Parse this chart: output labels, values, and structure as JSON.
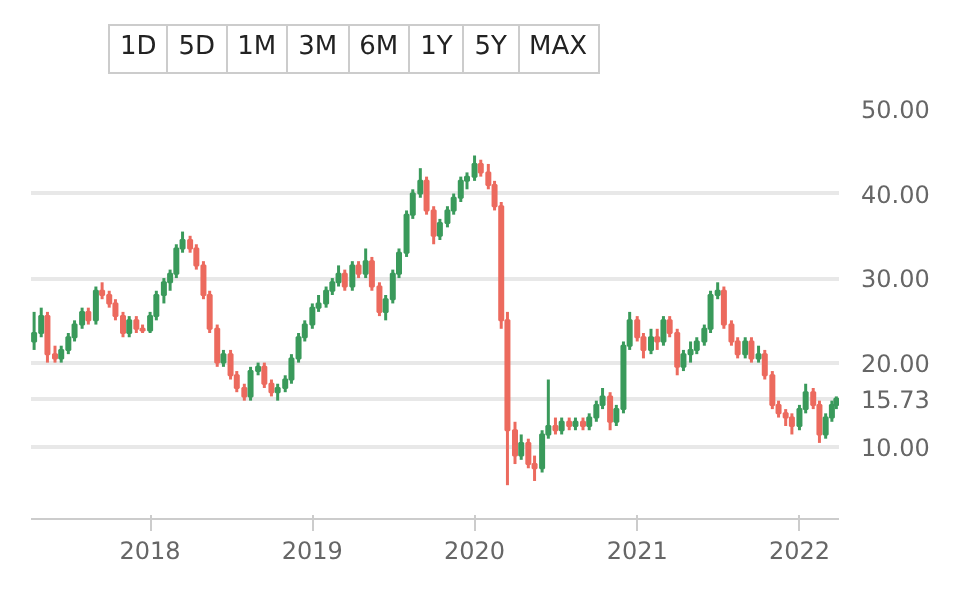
{
  "chart_data": {
    "type": "candlestick",
    "annotations": [
      "1D",
      "5D",
      "1M",
      "3M",
      "6M",
      "1Y",
      "5Y",
      "MAX"
    ],
    "x": [
      "2017-04-15",
      "2017-05-01",
      "2017-05-15",
      "2017-06-01",
      "2017-06-15",
      "2017-07-01",
      "2017-07-15",
      "2017-08-01",
      "2017-08-15",
      "2017-09-01",
      "2017-09-15",
      "2017-10-01",
      "2017-10-15",
      "2017-11-01",
      "2017-11-15",
      "2017-12-01",
      "2017-12-15",
      "2018-01-01",
      "2018-01-15",
      "2018-02-01",
      "2018-02-15",
      "2018-03-01",
      "2018-03-15",
      "2018-04-01",
      "2018-04-15",
      "2018-05-01",
      "2018-05-15",
      "2018-06-01",
      "2018-06-15",
      "2018-07-01",
      "2018-07-15",
      "2018-08-01",
      "2018-08-15",
      "2018-09-01",
      "2018-09-15",
      "2018-10-01",
      "2018-10-15",
      "2018-11-01",
      "2018-11-15",
      "2018-12-01",
      "2018-12-15",
      "2019-01-01",
      "2019-01-15",
      "2019-02-01",
      "2019-02-15",
      "2019-03-01",
      "2019-03-15",
      "2019-04-01",
      "2019-04-15",
      "2019-05-01",
      "2019-05-15",
      "2019-06-01",
      "2019-06-15",
      "2019-07-01",
      "2019-07-15",
      "2019-08-01",
      "2019-08-15",
      "2019-09-01",
      "2019-09-15",
      "2019-10-01",
      "2019-10-15",
      "2019-11-01",
      "2019-11-15",
      "2019-12-01",
      "2019-12-15",
      "2020-01-01",
      "2020-01-15",
      "2020-02-01",
      "2020-02-15",
      "2020-03-01",
      "2020-03-15",
      "2020-04-01",
      "2020-04-15",
      "2020-05-01",
      "2020-05-15",
      "2020-06-01",
      "2020-06-15",
      "2020-07-01",
      "2020-07-15",
      "2020-08-01",
      "2020-08-15",
      "2020-09-01",
      "2020-09-15",
      "2020-10-01",
      "2020-10-15",
      "2020-11-01",
      "2020-11-15",
      "2020-12-01",
      "2020-12-15",
      "2021-01-01",
      "2021-01-15",
      "2021-02-01",
      "2021-02-15",
      "2021-03-01",
      "2021-03-15",
      "2021-04-01",
      "2021-04-15",
      "2021-05-01",
      "2021-05-15",
      "2021-06-01",
      "2021-06-15",
      "2021-07-01",
      "2021-07-15",
      "2021-08-01",
      "2021-08-15",
      "2021-09-01",
      "2021-09-15",
      "2021-10-01",
      "2021-10-15",
      "2021-11-01",
      "2021-11-15",
      "2021-12-01",
      "2021-12-15",
      "2022-01-01",
      "2022-01-15",
      "2022-02-01",
      "2022-02-15",
      "2022-03-01",
      "2022-03-15",
      "2022-03-25"
    ],
    "ohlc": [
      [
        22.5,
        26.0,
        21.5,
        23.5
      ],
      [
        23.5,
        26.5,
        23.0,
        25.5
      ],
      [
        25.5,
        26.0,
        20.0,
        21.0
      ],
      [
        21.0,
        22.0,
        20.0,
        20.5
      ],
      [
        20.5,
        22.0,
        20.0,
        21.5
      ],
      [
        21.5,
        23.5,
        21.0,
        23.0
      ],
      [
        23.0,
        25.0,
        22.5,
        24.5
      ],
      [
        24.5,
        26.5,
        24.0,
        26.0
      ],
      [
        26.0,
        26.5,
        24.5,
        25.0
      ],
      [
        25.0,
        29.0,
        24.5,
        28.5
      ],
      [
        28.5,
        29.5,
        27.5,
        28.0
      ],
      [
        28.0,
        28.5,
        26.5,
        27.0
      ],
      [
        27.0,
        27.5,
        25.0,
        25.5
      ],
      [
        25.5,
        26.0,
        23.0,
        23.5
      ],
      [
        23.5,
        25.5,
        23.0,
        25.0
      ],
      [
        25.0,
        25.5,
        23.5,
        24.0
      ],
      [
        24.0,
        24.5,
        23.5,
        23.8
      ],
      [
        23.8,
        26.0,
        23.5,
        25.5
      ],
      [
        25.5,
        28.5,
        25.0,
        28.0
      ],
      [
        28.0,
        30.0,
        27.0,
        29.5
      ],
      [
        29.5,
        31.0,
        28.5,
        30.5
      ],
      [
        30.5,
        34.0,
        30.0,
        33.5
      ],
      [
        33.5,
        35.5,
        33.0,
        34.5
      ],
      [
        34.5,
        35.0,
        33.0,
        33.5
      ],
      [
        33.5,
        34.0,
        31.0,
        31.5
      ],
      [
        31.5,
        32.0,
        27.5,
        28.0
      ],
      [
        28.0,
        28.5,
        23.5,
        24.0
      ],
      [
        24.0,
        24.5,
        19.5,
        20.0
      ],
      [
        20.0,
        21.5,
        19.5,
        21.0
      ],
      [
        21.0,
        21.5,
        18.0,
        18.5
      ],
      [
        18.5,
        19.0,
        16.5,
        17.0
      ],
      [
        17.0,
        17.5,
        15.5,
        16.0
      ],
      [
        16.0,
        19.5,
        15.5,
        19.0
      ],
      [
        19.0,
        20.0,
        18.5,
        19.5
      ],
      [
        19.5,
        20.0,
        17.0,
        17.5
      ],
      [
        17.5,
        18.0,
        16.0,
        16.5
      ],
      [
        16.5,
        17.5,
        15.5,
        17.0
      ],
      [
        17.0,
        18.5,
        16.5,
        18.0
      ],
      [
        18.0,
        21.0,
        17.5,
        20.5
      ],
      [
        20.5,
        23.5,
        20.0,
        23.0
      ],
      [
        23.0,
        25.0,
        22.5,
        24.5
      ],
      [
        24.5,
        27.0,
        24.0,
        26.5
      ],
      [
        26.5,
        28.0,
        26.0,
        27.0
      ],
      [
        27.0,
        29.0,
        26.5,
        28.5
      ],
      [
        28.5,
        30.0,
        28.0,
        29.5
      ],
      [
        29.5,
        31.5,
        29.0,
        30.5
      ],
      [
        30.5,
        31.0,
        28.5,
        29.0
      ],
      [
        29.0,
        32.0,
        28.5,
        31.5
      ],
      [
        31.5,
        32.0,
        30.0,
        30.5
      ],
      [
        30.5,
        33.5,
        30.0,
        32.0
      ],
      [
        32.0,
        32.5,
        28.5,
        29.0
      ],
      [
        29.0,
        29.5,
        25.5,
        26.0
      ],
      [
        26.0,
        28.0,
        25.0,
        27.5
      ],
      [
        27.5,
        31.0,
        27.0,
        30.5
      ],
      [
        30.5,
        33.5,
        30.0,
        33.0
      ],
      [
        33.0,
        38.0,
        32.5,
        37.5
      ],
      [
        37.5,
        40.5,
        37.0,
        40.0
      ],
      [
        40.0,
        43.0,
        39.5,
        41.5
      ],
      [
        41.5,
        42.0,
        37.5,
        38.0
      ],
      [
        38.0,
        38.5,
        34.0,
        35.0
      ],
      [
        35.0,
        37.0,
        34.5,
        36.5
      ],
      [
        36.5,
        38.5,
        36.0,
        38.0
      ],
      [
        38.0,
        40.0,
        37.5,
        39.5
      ],
      [
        39.5,
        42.0,
        39.0,
        41.5
      ],
      [
        41.5,
        42.5,
        40.5,
        42.0
      ],
      [
        42.0,
        44.5,
        41.5,
        43.5
      ],
      [
        43.5,
        44.0,
        42.0,
        42.5
      ],
      [
        42.5,
        43.5,
        40.5,
        41.0
      ],
      [
        41.0,
        41.5,
        38.0,
        38.5
      ],
      [
        38.5,
        39.0,
        24.0,
        25.0
      ],
      [
        25.0,
        26.0,
        5.5,
        12.0
      ],
      [
        12.0,
        13.0,
        8.0,
        9.0
      ],
      [
        9.0,
        11.5,
        8.5,
        10.5
      ],
      [
        10.5,
        11.0,
        7.5,
        8.0
      ],
      [
        8.0,
        9.0,
        6.0,
        7.5
      ],
      [
        7.5,
        12.0,
        7.0,
        11.5
      ],
      [
        11.5,
        18.0,
        11.0,
        12.5
      ],
      [
        12.5,
        13.5,
        11.5,
        12.0
      ],
      [
        12.0,
        13.5,
        11.5,
        13.0
      ],
      [
        13.0,
        13.5,
        12.0,
        12.5
      ],
      [
        12.5,
        13.5,
        12.0,
        13.0
      ],
      [
        13.0,
        13.5,
        12.0,
        12.5
      ],
      [
        12.5,
        14.0,
        12.0,
        13.5
      ],
      [
        13.5,
        15.5,
        13.0,
        15.0
      ],
      [
        15.0,
        17.0,
        14.5,
        16.0
      ],
      [
        16.0,
        16.5,
        12.0,
        13.0
      ],
      [
        13.0,
        15.0,
        12.5,
        14.5
      ],
      [
        14.5,
        22.5,
        14.0,
        22.0
      ],
      [
        22.0,
        26.0,
        21.5,
        25.0
      ],
      [
        25.0,
        25.5,
        22.5,
        23.0
      ],
      [
        23.0,
        23.5,
        20.5,
        21.5
      ],
      [
        21.5,
        24.0,
        21.0,
        23.0
      ],
      [
        23.0,
        24.0,
        21.5,
        22.5
      ],
      [
        22.5,
        25.5,
        22.0,
        25.0
      ],
      [
        25.0,
        25.5,
        23.0,
        23.5
      ],
      [
        23.5,
        24.0,
        18.5,
        19.5
      ],
      [
        19.5,
        21.5,
        19.0,
        21.0
      ],
      [
        21.0,
        22.5,
        20.0,
        21.5
      ],
      [
        21.5,
        23.0,
        21.0,
        22.5
      ],
      [
        22.5,
        24.5,
        22.0,
        24.0
      ],
      [
        24.0,
        28.5,
        23.5,
        28.0
      ],
      [
        28.0,
        29.5,
        27.5,
        28.5
      ],
      [
        28.5,
        29.0,
        24.0,
        24.5
      ],
      [
        24.5,
        25.0,
        22.0,
        22.5
      ],
      [
        22.5,
        23.0,
        20.5,
        21.0
      ],
      [
        21.0,
        23.0,
        20.5,
        22.5
      ],
      [
        22.5,
        23.0,
        20.0,
        20.5
      ],
      [
        20.5,
        22.0,
        20.0,
        21.0
      ],
      [
        21.0,
        21.5,
        18.0,
        18.5
      ],
      [
        18.5,
        19.0,
        14.5,
        15.0
      ],
      [
        15.0,
        15.5,
        13.5,
        14.0
      ],
      [
        14.0,
        14.5,
        12.5,
        13.5
      ],
      [
        13.5,
        14.0,
        11.5,
        12.5
      ],
      [
        12.5,
        15.0,
        12.0,
        14.5
      ],
      [
        14.5,
        17.5,
        14.0,
        16.5
      ],
      [
        16.5,
        17.0,
        14.5,
        15.0
      ],
      [
        15.0,
        15.5,
        10.5,
        11.5
      ],
      [
        11.5,
        14.0,
        11.0,
        13.5
      ],
      [
        13.5,
        15.5,
        13.0,
        15.0
      ],
      [
        15.0,
        16.0,
        14.5,
        15.73
      ]
    ],
    "colors": [
      "#3a9a5b",
      "#3a9a5b",
      "#ec6a5e",
      "#ec6a5e",
      "#3a9a5b",
      "#3a9a5b",
      "#3a9a5b",
      "#3a9a5b",
      "#ec6a5e",
      "#3a9a5b",
      "#ec6a5e",
      "#ec6a5e",
      "#ec6a5e",
      "#ec6a5e",
      "#3a9a5b",
      "#ec6a5e",
      "#ec6a5e",
      "#3a9a5b",
      "#3a9a5b",
      "#3a9a5b",
      "#3a9a5b",
      "#3a9a5b",
      "#3a9a5b",
      "#ec6a5e",
      "#ec6a5e",
      "#ec6a5e",
      "#ec6a5e",
      "#ec6a5e",
      "#3a9a5b",
      "#ec6a5e",
      "#ec6a5e",
      "#ec6a5e",
      "#3a9a5b",
      "#3a9a5b",
      "#ec6a5e",
      "#ec6a5e",
      "#3a9a5b",
      "#3a9a5b",
      "#3a9a5b",
      "#3a9a5b",
      "#3a9a5b",
      "#3a9a5b",
      "#3a9a5b",
      "#3a9a5b",
      "#3a9a5b",
      "#3a9a5b",
      "#ec6a5e",
      "#3a9a5b",
      "#ec6a5e",
      "#3a9a5b",
      "#ec6a5e",
      "#ec6a5e",
      "#3a9a5b",
      "#3a9a5b",
      "#3a9a5b",
      "#3a9a5b",
      "#3a9a5b",
      "#3a9a5b",
      "#ec6a5e",
      "#ec6a5e",
      "#3a9a5b",
      "#3a9a5b",
      "#3a9a5b",
      "#3a9a5b",
      "#3a9a5b",
      "#3a9a5b",
      "#ec6a5e",
      "#ec6a5e",
      "#ec6a5e",
      "#ec6a5e",
      "#ec6a5e",
      "#ec6a5e",
      "#3a9a5b",
      "#ec6a5e",
      "#ec6a5e",
      "#3a9a5b",
      "#3a9a5b",
      "#ec6a5e",
      "#3a9a5b",
      "#ec6a5e",
      "#3a9a5b",
      "#ec6a5e",
      "#3a9a5b",
      "#3a9a5b",
      "#3a9a5b",
      "#ec6a5e",
      "#3a9a5b",
      "#3a9a5b",
      "#3a9a5b",
      "#ec6a5e",
      "#ec6a5e",
      "#3a9a5b",
      "#ec6a5e",
      "#3a9a5b",
      "#ec6a5e",
      "#ec6a5e",
      "#3a9a5b",
      "#3a9a5b",
      "#3a9a5b",
      "#3a9a5b",
      "#3a9a5b",
      "#3a9a5b",
      "#ec6a5e",
      "#ec6a5e",
      "#ec6a5e",
      "#3a9a5b",
      "#ec6a5e",
      "#3a9a5b",
      "#ec6a5e",
      "#ec6a5e",
      "#ec6a5e",
      "#ec6a5e",
      "#ec6a5e",
      "#3a9a5b",
      "#3a9a5b",
      "#ec6a5e",
      "#ec6a5e",
      "#3a9a5b",
      "#3a9a5b",
      "#3a9a5b"
    ],
    "xlim": [
      "2017-04-08",
      "2022-03-31"
    ],
    "xticks": [
      "2018",
      "2019",
      "2020",
      "2021",
      "2022"
    ],
    "ylim": [
      1.5,
      50
    ],
    "yticks": [
      {
        "value": 10,
        "label": "10.00"
      },
      {
        "value": 15.73,
        "label": "15.73"
      },
      {
        "value": 20,
        "label": "20.00"
      },
      {
        "value": 30,
        "label": "30.00"
      },
      {
        "value": 40,
        "label": "40.00"
      },
      {
        "value": 50,
        "label": "50.00"
      }
    ],
    "grid": "y"
  }
}
